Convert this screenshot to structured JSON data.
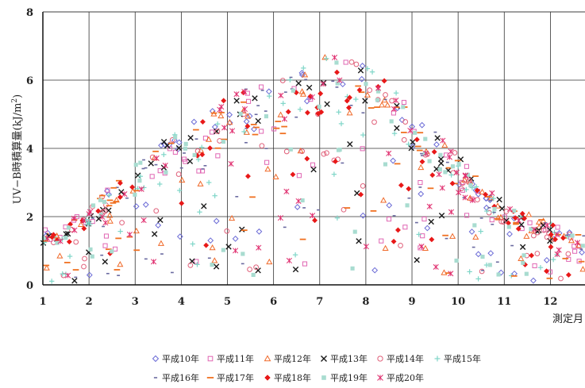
{
  "chart_data": {
    "type": "scatter",
    "title": "",
    "xlabel": "測定月",
    "ylabel": "UV−B時積算量(kJ/m²)",
    "ylabel_main": "UV−B時積算量(kJ/m",
    "ylabel_sup": "2",
    "ylabel_tail": ")",
    "xlim": [
      1,
      12.75
    ],
    "ylim": [
      0,
      8
    ],
    "x_ticks": [
      "1",
      "2",
      "3",
      "4",
      "5",
      "6",
      "7",
      "8",
      "9",
      "10",
      "11",
      "12"
    ],
    "y_ticks": [
      "0",
      "2",
      "4",
      "6",
      "8"
    ],
    "grid": true,
    "legend_position": "bottom",
    "series": [
      {
        "name": "平成10年",
        "marker": "diamond-open",
        "color": "#6b6bd6"
      },
      {
        "name": "平成11年",
        "marker": "square-open",
        "color": "#e066b3"
      },
      {
        "name": "平成12年",
        "marker": "triangle-open",
        "color": "#f06a2a"
      },
      {
        "name": "平成13年",
        "marker": "x",
        "color": "#1a1a1a"
      },
      {
        "name": "平成14年",
        "marker": "circle-open",
        "color": "#e0607a"
      },
      {
        "name": "平成15年",
        "marker": "plus",
        "color": "#7fd6c8"
      },
      {
        "name": "平成16年",
        "marker": "dash-small",
        "color": "#6a6aa0"
      },
      {
        "name": "平成17年",
        "marker": "dash",
        "color": "#f07020"
      },
      {
        "name": "平成18年",
        "marker": "diamond-filled",
        "color": "#e81818"
      },
      {
        "name": "平成19年",
        "marker": "square-filled",
        "color": "#a8dcd0"
      },
      {
        "name": "平成20年",
        "marker": "asterisk",
        "color": "#e03070"
      }
    ],
    "envelope_months": [
      1,
      1.5,
      2,
      2.5,
      3,
      3.5,
      4,
      4.5,
      5,
      5.5,
      6,
      6.5,
      7,
      7.5,
      8,
      8.5,
      9,
      9.5,
      10,
      10.5,
      11,
      11.5,
      12,
      12.75
    ],
    "envelope_max_y": [
      1.6,
      1.8,
      2.3,
      2.9,
      3.5,
      4.1,
      4.6,
      5.1,
      5.5,
      5.8,
      6.0,
      6.3,
      6.7,
      6.7,
      6.5,
      6.0,
      5.2,
      4.5,
      3.8,
      3.0,
      2.4,
      2.1,
      1.8,
      1.5
    ],
    "points_per_series": 70
  }
}
